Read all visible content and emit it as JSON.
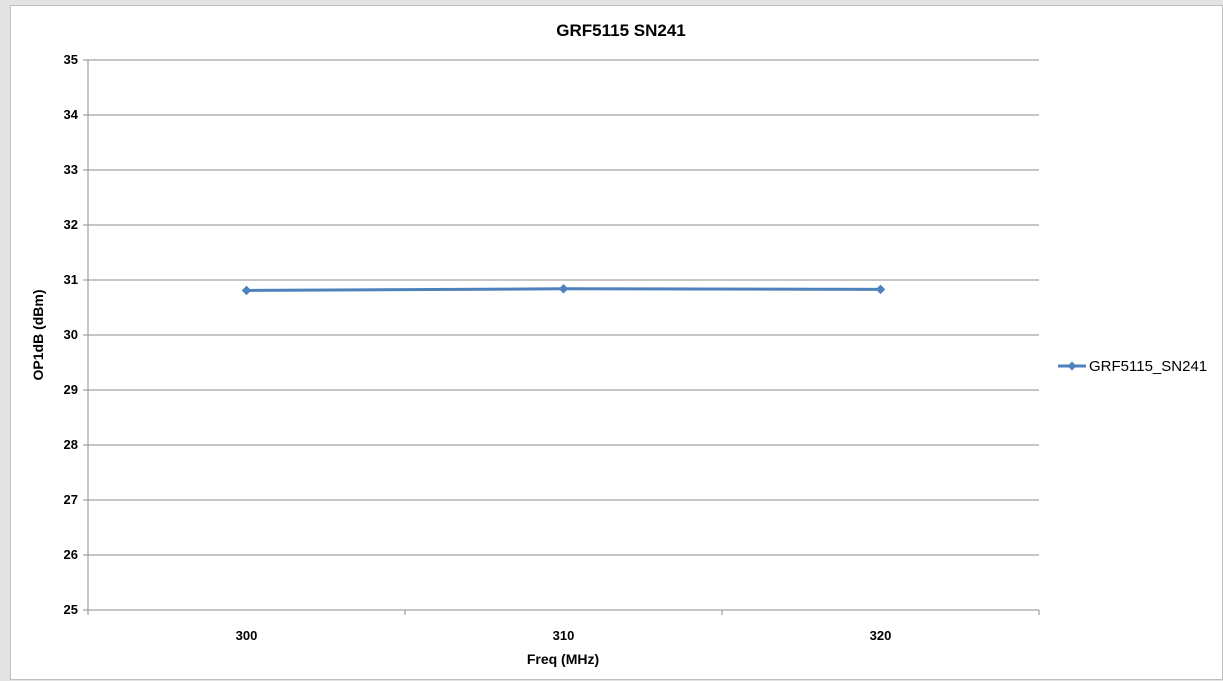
{
  "chart_data": {
    "type": "line",
    "title": "GRF5115 SN241",
    "xlabel": "Freq (MHz)",
    "ylabel": "OP1dB (dBm)",
    "categories": [
      "300",
      "310",
      "320"
    ],
    "x": [
      300,
      310,
      320
    ],
    "ylim": [
      25,
      35
    ],
    "yticks": [
      25,
      26,
      27,
      28,
      29,
      30,
      31,
      32,
      33,
      34,
      35
    ],
    "grid": true,
    "legend_position": "right",
    "series": [
      {
        "name": "GRF5115_SN241",
        "color": "#4f81bd",
        "marker": "diamond",
        "values": [
          30.81,
          30.84,
          30.83
        ]
      }
    ]
  }
}
